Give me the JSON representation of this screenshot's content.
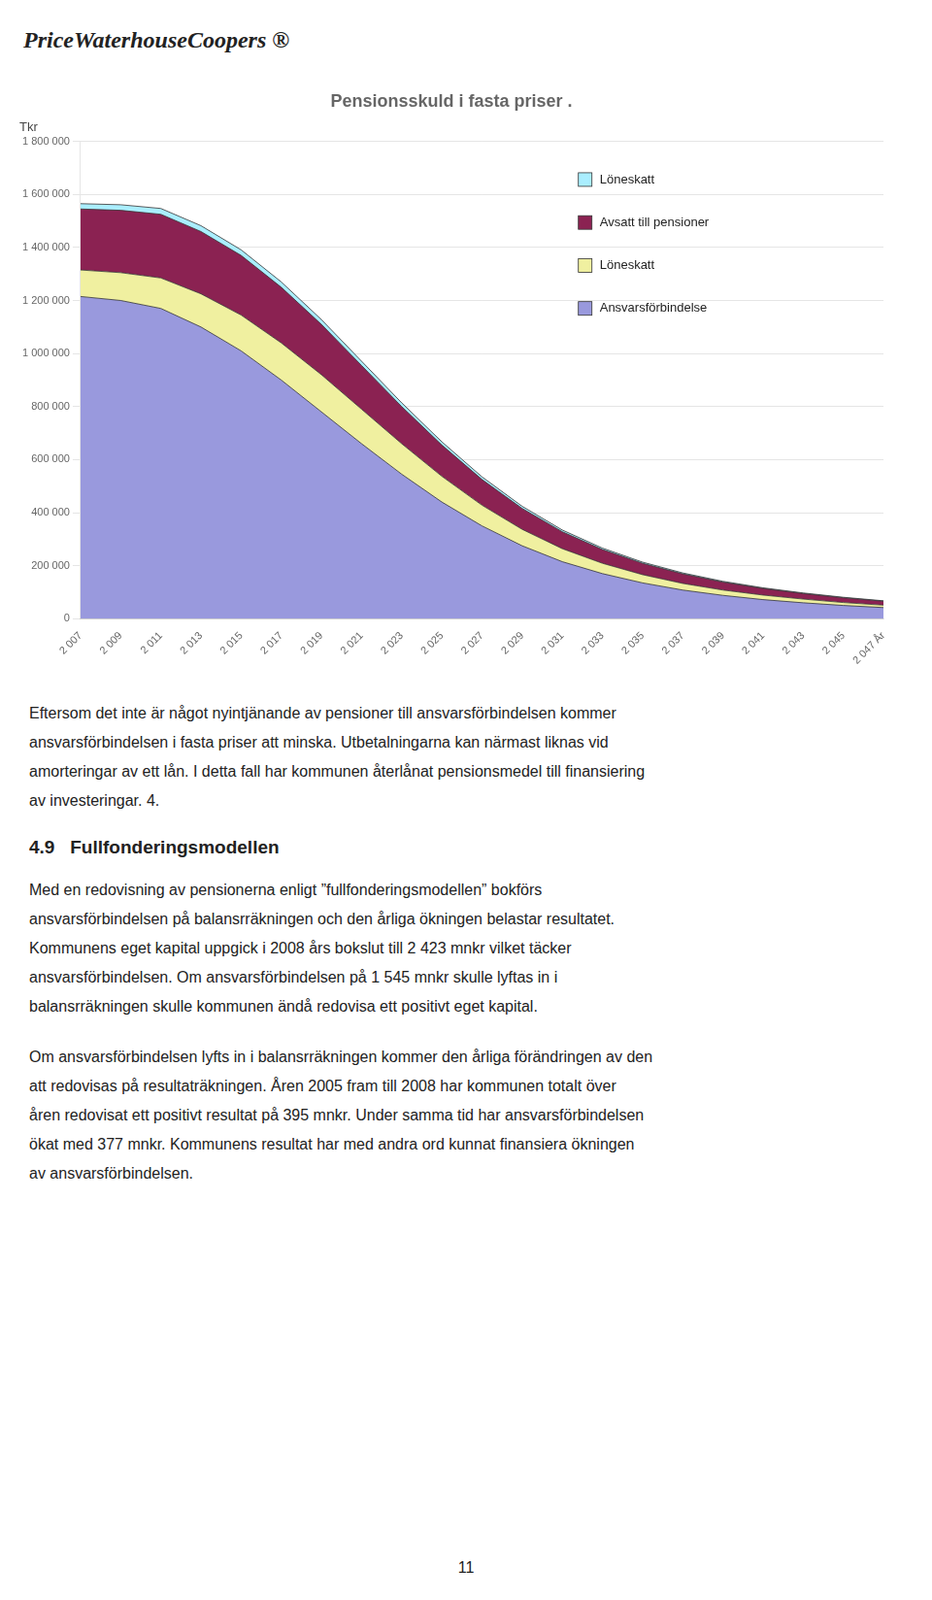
{
  "chart_data": {
    "type": "area",
    "stacked": true,
    "grid": "y",
    "title": "Pensionsskuld i fasta priser .",
    "ylabel": "Tkr",
    "x": [
      2007,
      2009,
      2011,
      2013,
      2015,
      2017,
      2019,
      2021,
      2023,
      2025,
      2027,
      2029,
      2031,
      2033,
      2035,
      2037,
      2039,
      2041,
      2043,
      2045,
      2047
    ],
    "xlim": [
      2007,
      2047
    ],
    "xticks": [
      {
        "value": 2007,
        "label": "2 007"
      },
      {
        "value": 2009,
        "label": "2 009"
      },
      {
        "value": 2011,
        "label": "2 011"
      },
      {
        "value": 2013,
        "label": "2 013"
      },
      {
        "value": 2015,
        "label": "2 015"
      },
      {
        "value": 2017,
        "label": "2 017"
      },
      {
        "value": 2019,
        "label": "2 019"
      },
      {
        "value": 2021,
        "label": "2 021"
      },
      {
        "value": 2023,
        "label": "2 023"
      },
      {
        "value": 2025,
        "label": "2 025"
      },
      {
        "value": 2027,
        "label": "2 027"
      },
      {
        "value": 2029,
        "label": "2 029"
      },
      {
        "value": 2031,
        "label": "2 031"
      },
      {
        "value": 2033,
        "label": "2 033"
      },
      {
        "value": 2035,
        "label": "2 035"
      },
      {
        "value": 2037,
        "label": "2 037"
      },
      {
        "value": 2039,
        "label": "2 039"
      },
      {
        "value": 2041,
        "label": "2 041"
      },
      {
        "value": 2043,
        "label": "2 043"
      },
      {
        "value": 2045,
        "label": "2 045"
      },
      {
        "value": 2047,
        "label": "2 047 År"
      }
    ],
    "ylim": [
      0,
      1800000
    ],
    "yticks": [
      0,
      {
        "value": 200000,
        "label": "200 000"
      },
      {
        "value": 400000,
        "label": "400 000"
      },
      {
        "value": 600000,
        "label": "600 000"
      },
      {
        "value": 800000,
        "label": "800 000"
      },
      {
        "value": 1000000,
        "label": "1 000 000"
      },
      {
        "value": 1200000,
        "label": "1 200 000"
      },
      {
        "value": 1400000,
        "label": "1 400 000"
      },
      {
        "value": 1600000,
        "label": "1 600 000"
      },
      {
        "value": 1800000,
        "label": "1 800 000"
      }
    ],
    "series": [
      {
        "name": "Ansvarsförbindelse",
        "color": "#9999dd",
        "values": [
          1215000,
          1200000,
          1170000,
          1100000,
          1010000,
          900000,
          780000,
          660000,
          545000,
          440000,
          350000,
          275000,
          215000,
          170000,
          135000,
          108000,
          88000,
          72000,
          60000,
          50000,
          42000
        ]
      },
      {
        "name": "Löneskatt",
        "color": "#f0f0a0",
        "values": [
          100000,
          105000,
          115000,
          125000,
          135000,
          140000,
          140000,
          130000,
          115000,
          97000,
          78000,
          62000,
          49000,
          39000,
          31000,
          25000,
          20000,
          17000,
          14000,
          11000,
          9000
        ]
      },
      {
        "name": "Avsatt till pensioner",
        "color": "#8B2252",
        "values": [
          230000,
          235000,
          240000,
          235000,
          225000,
          210000,
          190000,
          165000,
          140000,
          118000,
          97000,
          79000,
          64000,
          52000,
          43000,
          36000,
          30000,
          25000,
          21000,
          18000,
          15000
        ]
      },
      {
        "name": "Löneskatt",
        "color": "#aaeeff",
        "values": [
          20000,
          21000,
          22000,
          22000,
          21000,
          20000,
          18000,
          16000,
          14000,
          12000,
          10000,
          8000,
          6500,
          5200,
          4300,
          3600,
          3000,
          2500,
          2100,
          1800,
          1500
        ]
      }
    ]
  },
  "logo": "PriceWaterhouseCoopers ®",
  "intro_lines": [
    "Eftersom det inte är något nyintjänande av pensioner till ansvarsförbindelsen kommer",
    "ansvarsförbindelsen i fasta priser att minska. Utbetalningarna kan närmast liknas vid",
    "amorteringar av ett lån. I detta fall har kommunen återlånat pensionsmedel till finansiering",
    "av investeringar. 4."
  ],
  "section_header": "4.9   Fullfonderingsmodellen",
  "para1_lines": [
    "Med en redovisning av pensionerna enligt ”fullfonderingsmodellen” bokförs",
    "ansvarsförbindelsen på balansrräkningen och den årliga ökningen belastar resultatet.",
    "Kommunens eget kapital uppgick i 2008 års bokslut till 2 423 mnkr vilket täcker",
    "ansvarsförbindelsen. Om ansvarsförbindelsen på 1 545 mnkr skulle lyftas in i",
    "balansrräkningen skulle kommunen ändå redovisa ett positivt eget kapital."
  ],
  "para2_lines": [
    "Om ansvarsförbindelsen lyfts in i balansrräkningen kommer den årliga förändringen av den",
    "att redovisas på resultaträkningen. Åren 2005 fram till 2008 har kommunen totalt över",
    "åren redovisat ett positivt resultat på 395 mnkr. Under samma tid har ansvarsförbindelsen",
    "ökat med 377 mnkr. Kommunens resultat har med andra ord kunnat finansiera ökningen",
    "av ansvarsförbindelsen."
  ],
  "page_number": "11"
}
